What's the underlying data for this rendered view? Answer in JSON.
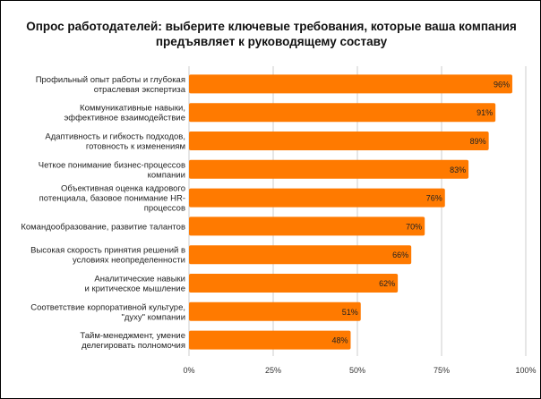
{
  "chart_data": {
    "type": "bar",
    "orientation": "horizontal",
    "title": "Опрос работодателей: выберите ключевые требования, которые ваша компания\nпредъявляет к руководящему составу",
    "categories": [
      "Профильный опыт работы и глубокая\nотраслевая экспертиза",
      "Коммуникативные навыки,\nэффективное взаимодействие",
      "Адаптивность и гибкость подходов,\nготовность к изменениям",
      "Четкое понимание бизнес-процессов\nкомпании",
      "Объективная оценка кадрового\nпотенциала, базовое понимание HR-\nпроцессов",
      "Командообразование, развитие талантов",
      "Высокая скорость принятия решений в\nусловиях неопределенности",
      "Аналитические навыки\nи критическое мышление",
      "Соответствие корпоративной культуре,\n\"духу\" компании",
      "Тайм-менеджмент, умение\nделегировать полномочия"
    ],
    "values": [
      96,
      91,
      89,
      83,
      76,
      70,
      66,
      62,
      51,
      48
    ],
    "value_labels": [
      "96%",
      "91%",
      "89%",
      "83%",
      "76%",
      "70%",
      "66%",
      "62%",
      "51%",
      "48%"
    ],
    "xlim": [
      0,
      100
    ],
    "xticks": [
      0,
      25,
      50,
      75,
      100
    ],
    "xtick_labels": [
      "0%",
      "25%",
      "50%",
      "75%",
      "100%"
    ],
    "grid": true,
    "bar_color": "#ff7a00",
    "grid_color": "#cccccc"
  }
}
